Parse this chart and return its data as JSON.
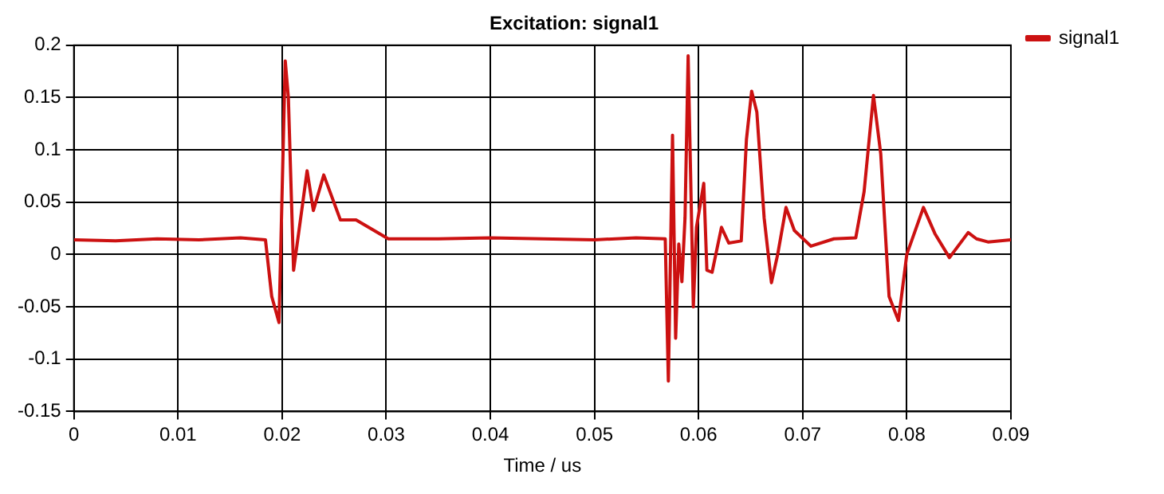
{
  "chart_data": {
    "type": "line",
    "title": "Excitation: signal1",
    "xlabel": "Time / us",
    "xlim": [
      0,
      0.09
    ],
    "xticks": [
      0,
      0.01,
      0.02,
      0.03,
      0.04,
      0.05,
      0.06,
      0.07,
      0.08,
      0.09
    ],
    "ylim": [
      -0.15,
      0.2
    ],
    "yticks": [
      -0.15,
      -0.1,
      -0.05,
      0,
      0.05,
      0.1,
      0.15,
      0.2
    ],
    "grid": true,
    "legend": "top right",
    "marker": "none",
    "line_style": "solid",
    "series": [
      {
        "name": "signal1",
        "color": "#cc1111",
        "x": [
          0,
          0.004,
          0.008,
          0.012,
          0.016,
          0.0184,
          0.019,
          0.0197,
          0.0203,
          0.0206,
          0.0211,
          0.0224,
          0.023,
          0.024,
          0.0256,
          0.0271,
          0.0302,
          0.035,
          0.04,
          0.045,
          0.05,
          0.054,
          0.0568,
          0.0571,
          0.0575,
          0.0578,
          0.0581,
          0.0584,
          0.0587,
          0.059,
          0.0595,
          0.0598,
          0.0605,
          0.0608,
          0.0613,
          0.0622,
          0.0629,
          0.0641,
          0.0646,
          0.0651,
          0.0656,
          0.0663,
          0.067,
          0.0676,
          0.0684,
          0.0692,
          0.0708,
          0.073,
          0.0751,
          0.0759,
          0.0768,
          0.0775,
          0.0783,
          0.0792,
          0.08,
          0.0816,
          0.0827,
          0.0841,
          0.0859,
          0.0867,
          0.0878,
          0.09
        ],
        "values": [
          0.014,
          0.013,
          0.015,
          0.014,
          0.016,
          0.014,
          -0.04,
          -0.065,
          0.185,
          0.15,
          -0.015,
          0.08,
          0.042,
          0.076,
          0.033,
          0.033,
          0.015,
          0.015,
          0.016,
          0.015,
          0.014,
          0.016,
          0.015,
          -0.121,
          0.114,
          -0.08,
          0.01,
          -0.026,
          0.035,
          0.19,
          -0.05,
          0.026,
          0.068,
          -0.015,
          -0.017,
          0.026,
          0.011,
          0.013,
          0.11,
          0.156,
          0.136,
          0.035,
          -0.027,
          0,
          0.045,
          0.023,
          0.008,
          0.015,
          0.016,
          0.06,
          0.152,
          0.096,
          -0.04,
          -0.063,
          0,
          0.045,
          0.02,
          -0.003,
          0.021,
          0.015,
          0.012,
          0.014
        ]
      }
    ]
  }
}
